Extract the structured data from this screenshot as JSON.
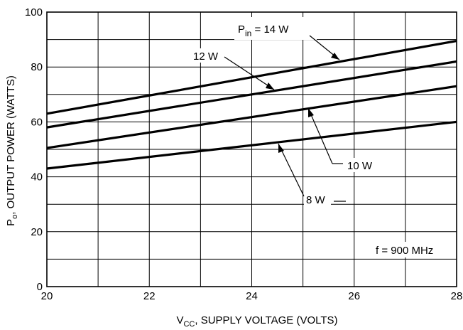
{
  "chart_data": {
    "type": "line",
    "x_axis": {
      "label_main": "V",
      "label_sub": "CC",
      "label_rest": ", SUPPLY VOLTAGE (VOLTS)",
      "range": [
        20,
        28
      ],
      "ticks": [
        20,
        22,
        24,
        26,
        28
      ],
      "tick_labels": [
        "20",
        "22",
        "24",
        "26",
        "28"
      ],
      "minor_gridlines": [
        21,
        23,
        25,
        27
      ]
    },
    "y_axis": {
      "label_main": "P",
      "label_sub": "o",
      "label_rest": ", OUTPUT POWER (WATTS)",
      "range": [
        0,
        100
      ],
      "ticks": [
        0,
        20,
        40,
        60,
        80,
        100
      ],
      "tick_labels": [
        "0",
        "20",
        "40",
        "60",
        "80",
        "100"
      ],
      "minor_gridlines": [
        10,
        30,
        50,
        70,
        90
      ]
    },
    "grid": true,
    "series": [
      {
        "name": "Pin = 14 W",
        "x": [
          20,
          28
        ],
        "y": [
          63,
          89.5
        ]
      },
      {
        "name": "12 W",
        "x": [
          20,
          28
        ],
        "y": [
          58,
          82
        ]
      },
      {
        "name": "10 W",
        "x": [
          20,
          28
        ],
        "y": [
          50.5,
          73
        ]
      },
      {
        "name": "8 W",
        "x": [
          20,
          28
        ],
        "y": [
          43,
          60
        ]
      }
    ],
    "annotations": {
      "pin_label": {
        "main": "P",
        "sub": "in",
        "rest": " = 14 W"
      },
      "label_12w": "12 W",
      "label_10w": "10 W",
      "label_8w": "8 W",
      "frequency_note": "f = 900 MHz"
    }
  }
}
